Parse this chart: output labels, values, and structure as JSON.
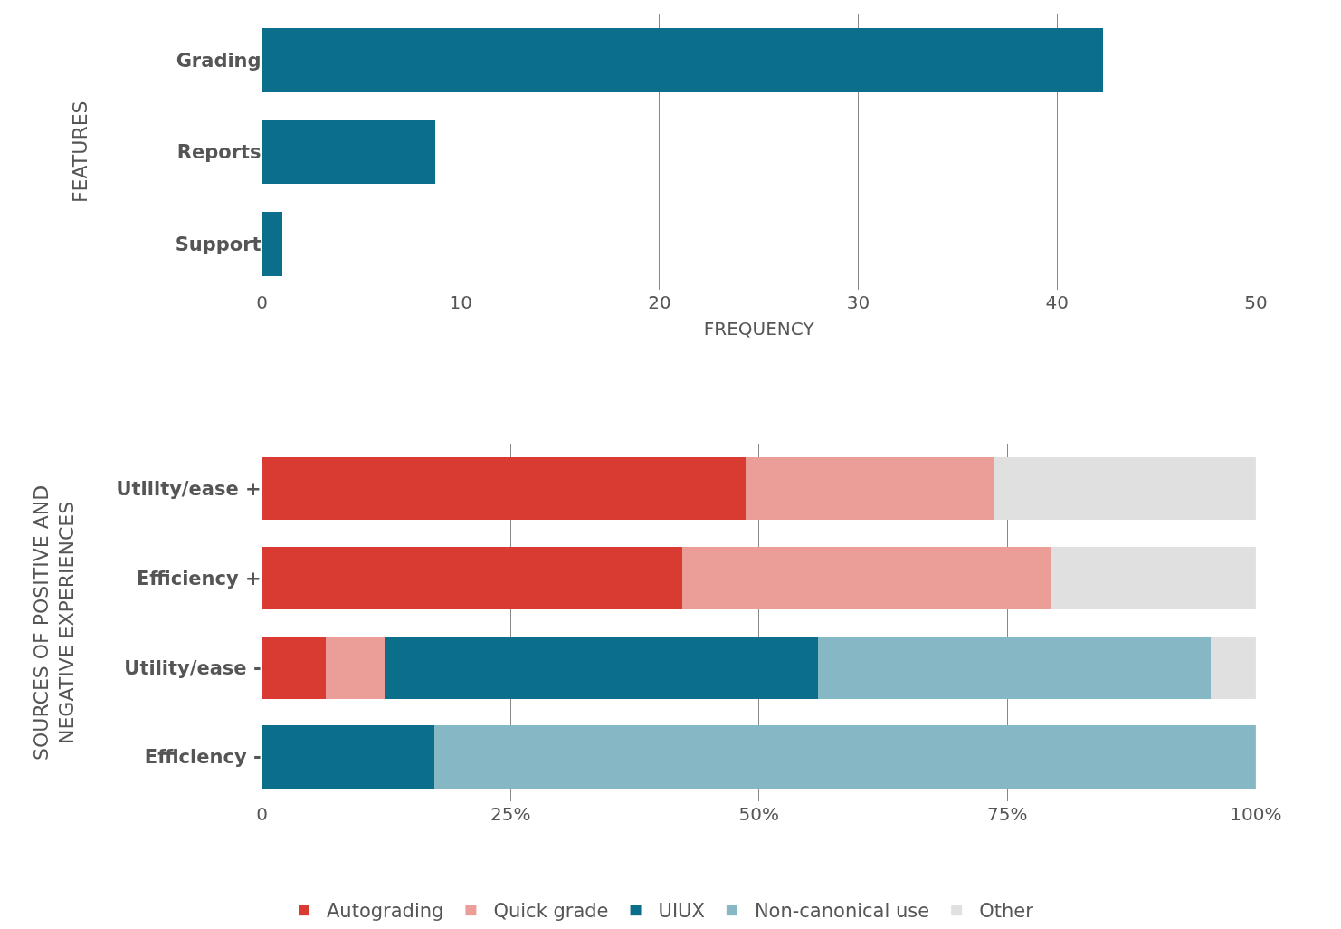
{
  "chart_data": [
    {
      "type": "bar",
      "orientation": "horizontal",
      "ylabel": "FEATURES",
      "xlabel": "FREQUENCY",
      "categories": [
        "Grading",
        "Reports",
        "Support"
      ],
      "values": [
        42.3,
        8.7,
        1
      ],
      "color": "#0b6e8b",
      "xlim": [
        0,
        50
      ],
      "xticks": [
        0,
        10,
        20,
        30,
        40,
        50
      ],
      "grid": "x",
      "legend": false
    },
    {
      "type": "bar",
      "orientation": "horizontal",
      "stacked": true,
      "ylabel": "SOURCES OF POSITIVE AND NEGATIVE EXPERIENCES",
      "categories": [
        "Utility/ease +",
        "Efficiency +",
        "Utility/ease -",
        "Efficiency -"
      ],
      "xlim": [
        0,
        100
      ],
      "xticks": [
        0,
        {
          "value": 25,
          "label": "25%"
        },
        {
          "value": 50,
          "label": "50%"
        },
        {
          "value": 75,
          "label": "75%"
        },
        {
          "value": 100,
          "label": "100%"
        }
      ],
      "grid": "x",
      "legend": "bottom",
      "series": [
        {
          "name": "Autograding",
          "color": "#d93a32",
          "values": [
            48.7,
            42.3,
            6.4,
            null
          ]
        },
        {
          "name": "Quick grade",
          "color": "#eb9e97",
          "values": [
            25.0,
            37.1,
            5.9,
            null
          ]
        },
        {
          "name": "UIUX",
          "color": "#0b6e8b",
          "values": [
            null,
            null,
            43.6,
            17.3
          ]
        },
        {
          "name": "Non-canonical use",
          "color": "#86b7c4",
          "values": [
            null,
            null,
            39.6,
            82.7
          ]
        },
        {
          "name": "Other",
          "color": "#e0e0e0",
          "values": [
            26.3,
            20.6,
            4.5,
            null
          ]
        }
      ]
    }
  ]
}
